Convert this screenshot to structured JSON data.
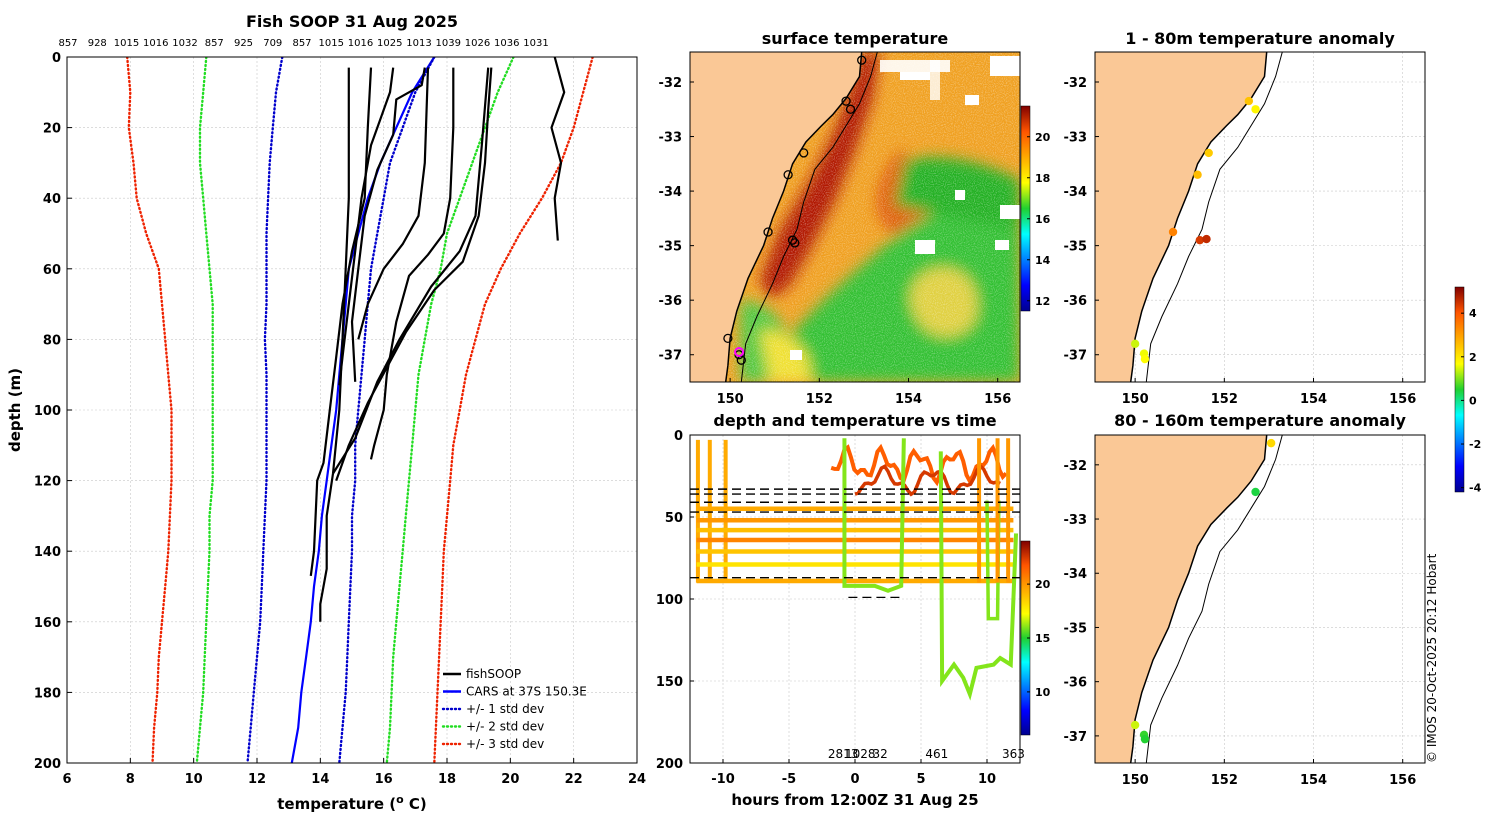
{
  "chart_data": [
    {
      "id": "profile",
      "type": "line",
      "title": "Fish SOOP 31 Aug 2025",
      "top_labels": [
        "857",
        "928",
        "1015",
        "1016",
        "1032",
        "857",
        "925",
        "709",
        "857",
        "1015",
        "1016",
        "1025",
        "1013",
        "1039",
        "1026",
        "1036",
        "1031"
      ],
      "xlabel": "temperature (° C)",
      "xlabel_parts": {
        "pre": "temperature (",
        "sup": "o",
        "post": " C)"
      },
      "ylabel": "depth (m)",
      "xlim": [
        6,
        24
      ],
      "ylim": [
        0,
        200
      ],
      "xticks": [
        6,
        8,
        10,
        12,
        14,
        16,
        18,
        20,
        22,
        24
      ],
      "yticks": [
        0,
        20,
        40,
        60,
        80,
        100,
        120,
        140,
        160,
        180,
        200
      ],
      "depth": [
        0,
        10,
        20,
        30,
        40,
        50,
        60,
        70,
        80,
        90,
        100,
        110,
        120,
        130,
        140,
        150,
        160,
        170,
        180,
        190,
        200
      ],
      "series": [
        {
          "name": "CARS at 37S 150.3E",
          "color": "#0000ff",
          "style": "solid",
          "temps": [
            17.6,
            16.9,
            16.4,
            15.9,
            15.5,
            15.2,
            14.9,
            14.8,
            14.7,
            14.6,
            14.5,
            14.35,
            14.2,
            14.05,
            13.95,
            13.8,
            13.7,
            13.55,
            13.4,
            13.3,
            13.1
          ]
        },
        {
          "name": "+/- 1 std dev (low)",
          "color": "#0000cc",
          "style": "dotted",
          "temps": [
            12.8,
            12.6,
            12.5,
            12.4,
            12.35,
            12.3,
            12.3,
            12.3,
            12.25,
            12.3,
            12.3,
            12.3,
            12.3,
            12.25,
            12.2,
            12.15,
            12.1,
            12.0,
            11.9,
            11.8,
            11.7
          ]
        },
        {
          "name": "+/- 1 std dev (high)",
          "color": "#0000cc",
          "style": "dotted",
          "temps": [
            17.6,
            17.0,
            16.6,
            16.2,
            16.0,
            15.8,
            15.6,
            15.5,
            15.4,
            15.3,
            15.2,
            15.1,
            15.1,
            15.0,
            15.0,
            14.95,
            14.9,
            14.85,
            14.8,
            14.7,
            14.6
          ]
        },
        {
          "name": "+/- 2 std dev (low)",
          "color": "#22dd22",
          "style": "dotted",
          "temps": [
            10.4,
            10.3,
            10.2,
            10.2,
            10.3,
            10.4,
            10.5,
            10.6,
            10.6,
            10.6,
            10.6,
            10.6,
            10.6,
            10.5,
            10.5,
            10.45,
            10.4,
            10.35,
            10.3,
            10.2,
            10.1
          ]
        },
        {
          "name": "+/- 2 std dev (high)",
          "color": "#22dd22",
          "style": "dotted",
          "temps": [
            20.1,
            19.6,
            19.2,
            18.8,
            18.4,
            18.0,
            17.8,
            17.5,
            17.3,
            17.1,
            17.0,
            16.9,
            16.8,
            16.7,
            16.6,
            16.5,
            16.4,
            16.3,
            16.25,
            16.2,
            16.1
          ]
        },
        {
          "name": "+/- 3 std dev (low)",
          "color": "#ee2200",
          "style": "dotted",
          "temps": [
            7.9,
            8.0,
            7.95,
            8.1,
            8.2,
            8.5,
            8.9,
            9.0,
            9.1,
            9.2,
            9.3,
            9.3,
            9.3,
            9.25,
            9.2,
            9.1,
            9.0,
            8.9,
            8.85,
            8.75,
            8.7
          ]
        },
        {
          "name": "+/- 3 std dev (high)",
          "color": "#ee2200",
          "style": "dotted",
          "temps": [
            22.6,
            22.3,
            22.0,
            21.6,
            21.0,
            20.3,
            19.7,
            19.2,
            18.9,
            18.6,
            18.4,
            18.2,
            18.1,
            18.0,
            17.9,
            17.85,
            17.8,
            17.75,
            17.7,
            17.65,
            17.6
          ]
        }
      ],
      "fish_profiles": [
        [
          [
            14.9,
            3
          ],
          [
            14.9,
            40
          ],
          [
            14.8,
            60
          ],
          [
            14.7,
            80
          ],
          [
            14.6,
            100
          ],
          [
            14.4,
            118
          ],
          [
            14.2,
            130
          ],
          [
            14.2,
            145
          ],
          [
            14.0,
            155
          ],
          [
            14.0,
            160
          ]
        ],
        [
          [
            15.6,
            3
          ],
          [
            15.5,
            20
          ],
          [
            15.4,
            40
          ],
          [
            15.0,
            55
          ],
          [
            14.7,
            70
          ],
          [
            14.5,
            85
          ],
          [
            14.3,
            100
          ],
          [
            14.1,
            115
          ],
          [
            13.9,
            120
          ],
          [
            13.8,
            140
          ],
          [
            13.7,
            147
          ]
        ],
        [
          [
            16.3,
            3
          ],
          [
            16.2,
            10
          ],
          [
            15.6,
            25
          ],
          [
            15.3,
            40
          ],
          [
            15.1,
            55
          ],
          [
            14.9,
            70
          ],
          [
            14.7,
            85
          ],
          [
            14.6,
            93
          ]
        ],
        [
          [
            17.3,
            3
          ],
          [
            17.2,
            8
          ],
          [
            16.4,
            12
          ],
          [
            16.3,
            22
          ],
          [
            15.8,
            32
          ],
          [
            15.4,
            45
          ],
          [
            15.2,
            60
          ],
          [
            15.0,
            75
          ],
          [
            15.1,
            92
          ]
        ],
        [
          [
            18.2,
            3
          ],
          [
            18.2,
            20
          ],
          [
            18.1,
            40
          ],
          [
            17.9,
            50
          ],
          [
            17.4,
            56
          ],
          [
            16.8,
            62
          ],
          [
            16.4,
            75
          ],
          [
            16.1,
            90
          ],
          [
            16.0,
            100
          ],
          [
            15.7,
            110
          ],
          [
            15.6,
            114
          ]
        ],
        [
          [
            19.4,
            3
          ],
          [
            19.3,
            15
          ],
          [
            19.2,
            30
          ],
          [
            19.0,
            45
          ],
          [
            18.5,
            58
          ],
          [
            17.6,
            66
          ],
          [
            16.7,
            78
          ],
          [
            16.1,
            88
          ],
          [
            15.5,
            98
          ],
          [
            14.9,
            110
          ],
          [
            14.5,
            120
          ]
        ],
        [
          [
            19.3,
            3
          ],
          [
            19.1,
            25
          ],
          [
            18.9,
            45
          ],
          [
            18.4,
            55
          ],
          [
            17.5,
            65
          ],
          [
            16.5,
            80
          ],
          [
            15.8,
            92
          ],
          [
            15.1,
            108
          ],
          [
            14.4,
            118
          ]
        ],
        [
          [
            17.4,
            3
          ],
          [
            17.3,
            30
          ],
          [
            17.1,
            45
          ],
          [
            16.6,
            53
          ],
          [
            16.0,
            60
          ],
          [
            15.5,
            70
          ],
          [
            15.2,
            80
          ]
        ],
        [
          [
            21.4,
            0
          ],
          [
            21.7,
            10
          ],
          [
            21.3,
            20
          ],
          [
            21.6,
            30
          ],
          [
            21.4,
            40
          ],
          [
            21.5,
            52
          ]
        ]
      ],
      "legend": [
        "fishSOOP",
        "CARS at 37S 150.3E",
        "+/- 1 std dev",
        "+/- 2 std dev",
        "+/- 3 std dev"
      ],
      "legend_colors": [
        "#000000",
        "#0000ff",
        "#0000cc",
        "#22dd22",
        "#ee2200"
      ]
    },
    {
      "id": "sst",
      "type": "heatmap",
      "title": "surface temperature",
      "xlim": [
        149.1,
        156.5
      ],
      "ylim": [
        -37.5,
        -31.45
      ],
      "xticks": [
        150,
        152,
        154,
        156
      ],
      "yticks": [
        -32,
        -33,
        -34,
        -35,
        -36,
        -37
      ],
      "colorbar": {
        "min": 11.5,
        "max": 21.5,
        "ticks": [
          12,
          14,
          16,
          18,
          20
        ]
      },
      "coast": [
        [
          152.95,
          -31.45
        ],
        [
          152.9,
          -31.9
        ],
        [
          152.6,
          -32.3
        ],
        [
          152.3,
          -32.6
        ],
        [
          152.05,
          -32.8
        ],
        [
          151.7,
          -33.1
        ],
        [
          151.4,
          -33.5
        ],
        [
          151.2,
          -34.0
        ],
        [
          150.95,
          -34.5
        ],
        [
          150.75,
          -35.0
        ],
        [
          150.4,
          -35.6
        ],
        [
          150.15,
          -36.2
        ],
        [
          150.0,
          -36.7
        ],
        [
          149.95,
          -37.2
        ],
        [
          149.9,
          -37.5
        ]
      ],
      "shelf": [
        [
          153.3,
          -31.45
        ],
        [
          153.15,
          -31.9
        ],
        [
          152.9,
          -32.4
        ],
        [
          152.6,
          -32.8
        ],
        [
          152.3,
          -33.2
        ],
        [
          151.9,
          -33.6
        ],
        [
          151.65,
          -34.2
        ],
        [
          151.5,
          -34.7
        ],
        [
          151.2,
          -35.2
        ],
        [
          150.95,
          -35.7
        ],
        [
          150.6,
          -36.3
        ],
        [
          150.35,
          -36.8
        ],
        [
          150.25,
          -37.5
        ]
      ],
      "stations": [
        [
          152.95,
          -31.6
        ],
        [
          152.6,
          -32.35
        ],
        [
          152.7,
          -32.5
        ],
        [
          151.65,
          -33.3
        ],
        [
          151.3,
          -33.7
        ],
        [
          150.85,
          -34.75
        ],
        [
          151.45,
          -34.95
        ],
        [
          151.4,
          -34.9
        ],
        [
          149.95,
          -36.7
        ],
        [
          150.2,
          -37.0
        ],
        [
          150.25,
          -37.1
        ]
      ],
      "highlight_station": [
        150.2,
        -36.95
      ]
    },
    {
      "id": "dtime",
      "type": "line",
      "title": "depth and temperature vs time",
      "xlabel": "hours from 12:00Z 31 Aug 25",
      "xlim": [
        -12.5,
        12.5
      ],
      "ylim": [
        0,
        200
      ],
      "xticks": [
        -10,
        -5,
        0,
        5,
        10
      ],
      "xtick_labels": [
        "-10",
        "-5",
        "0",
        "5",
        "10"
      ],
      "yticks": [
        0,
        50,
        100,
        150,
        200
      ],
      "colorbar": {
        "min": 6,
        "max": 24,
        "ticks": [
          10,
          15,
          20
        ]
      },
      "dashed_depths": [
        33,
        36,
        41,
        47,
        87
      ],
      "short_dashed": {
        "x": [
          -0.5,
          3.5
        ],
        "y": 99
      },
      "bottom_labels": [
        {
          "text": "2813",
          "x": -0.9
        },
        {
          "text": "1028",
          "x": 0.4
        },
        {
          "text": "32",
          "x": 1.9
        },
        {
          "text": "461",
          "x": 6.2
        },
        {
          "text": "363",
          "x": 12.0
        }
      ],
      "horizontal_tracks": [
        {
          "y": 45,
          "temp": 19.5
        },
        {
          "y": 52,
          "temp": 20.0
        },
        {
          "y": 58,
          "temp": 19.0
        },
        {
          "y": 64,
          "temp": 20.5
        },
        {
          "y": 71,
          "temp": 18.8
        },
        {
          "y": 79,
          "temp": 18.0
        },
        {
          "y": 89,
          "temp": 19.5
        }
      ]
    },
    {
      "id": "anom1",
      "type": "scatter",
      "title": "1 - 80m temperature anomaly",
      "xlim": [
        149.1,
        156.5
      ],
      "ylim": [
        -37.5,
        -31.45
      ],
      "xticks": [
        150,
        152,
        154,
        156
      ],
      "yticks": [
        -32,
        -33,
        -34,
        -35,
        -36,
        -37
      ],
      "points": [
        {
          "lon": 152.55,
          "lat": -32.35,
          "anom": 2.5
        },
        {
          "lon": 152.7,
          "lat": -32.5,
          "anom": 1.8
        },
        {
          "lon": 151.65,
          "lat": -33.3,
          "anom": 2.4
        },
        {
          "lon": 151.4,
          "lat": -33.7,
          "anom": 2.6
        },
        {
          "lon": 150.85,
          "lat": -34.75,
          "anom": 3.4
        },
        {
          "lon": 151.45,
          "lat": -34.9,
          "anom": 4.4
        },
        {
          "lon": 151.6,
          "lat": -34.88,
          "anom": 4.6
        },
        {
          "lon": 150.0,
          "lat": -36.8,
          "anom": 1.4
        },
        {
          "lon": 150.2,
          "lat": -36.98,
          "anom": 1.6
        },
        {
          "lon": 150.22,
          "lat": -37.08,
          "anom": 1.7
        }
      ],
      "colorbar": {
        "min": -4.2,
        "max": 5.2,
        "ticks": [
          -4,
          -2,
          0,
          2,
          4
        ]
      }
    },
    {
      "id": "anom2",
      "type": "scatter",
      "title": "80 - 160m temperature anomaly",
      "xlim": [
        149.1,
        156.5
      ],
      "ylim": [
        -37.5,
        -31.45
      ],
      "xticks": [
        150,
        152,
        154,
        156
      ],
      "yticks": [
        -32,
        -33,
        -34,
        -35,
        -36,
        -37
      ],
      "points": [
        {
          "lon": 153.05,
          "lat": -31.6,
          "anom": 2.2
        },
        {
          "lon": 152.7,
          "lat": -32.5,
          "anom": 0.4
        },
        {
          "lon": 150.0,
          "lat": -36.8,
          "anom": 1.4
        },
        {
          "lon": 150.2,
          "lat": -36.98,
          "anom": 0.6
        },
        {
          "lon": 150.22,
          "lat": -37.06,
          "anom": 0.5
        }
      ]
    }
  ],
  "footer": {
    "credit": "© IMOS 20-Oct-2025 20:12 Hobart"
  }
}
